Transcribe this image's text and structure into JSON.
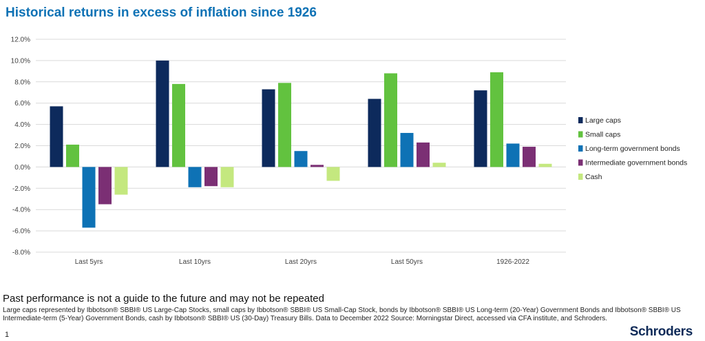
{
  "title": "Historical returns in excess of inflation since 1926",
  "chart_data": {
    "type": "bar",
    "categories": [
      "Last 5yrs",
      "Last 10yrs",
      "Last 20yrs",
      "Last 50yrs",
      "1926-2022"
    ],
    "series": [
      {
        "name": "Large caps",
        "color": "#0d2a5c",
        "values": [
          5.7,
          10.0,
          7.3,
          6.4,
          7.2
        ]
      },
      {
        "name": "Small caps",
        "color": "#62c23f",
        "values": [
          2.1,
          7.8,
          7.9,
          8.8,
          8.9
        ]
      },
      {
        "name": "Long-term government bonds",
        "color": "#0e72b5",
        "values": [
          -5.7,
          -1.9,
          1.5,
          3.2,
          2.2
        ]
      },
      {
        "name": "Intermediate government bonds",
        "color": "#7b2f74",
        "values": [
          -3.5,
          -1.8,
          0.2,
          2.3,
          1.9
        ]
      },
      {
        "name": "Cash",
        "color": "#c4e87f",
        "values": [
          -2.6,
          -1.9,
          -1.3,
          0.4,
          0.3
        ]
      }
    ],
    "yticks": [
      "12.0%",
      "10.0%",
      "8.0%",
      "6.0%",
      "4.0%",
      "2.0%",
      "0.0%",
      "-2.0%",
      "-4.0%",
      "-6.0%",
      "-8.0%"
    ],
    "ylim": [
      -8,
      12
    ],
    "grid": true,
    "legend_position": "right"
  },
  "disclaimer": "Past performance is not a guide to the future and may not be repeated",
  "footnote": "Large caps represented by Ibbotson® SBBI® US Large-Cap Stocks, small caps by Ibbotson® SBBI® US Small-Cap Stock, bonds by Ibbotson® SBBI® US Long-term (20-Year) Government Bonds and Ibbotson® SBBI® US Intermediate-term (5-Year) Government Bonds, cash by Ibbotson® SBBI® US (30-Day) Treasury Bills. Data to December 2022 Source: Morningstar Direct, accessed via CFA institute, and Schroders.",
  "page_number": "1",
  "brand": "Schroders"
}
